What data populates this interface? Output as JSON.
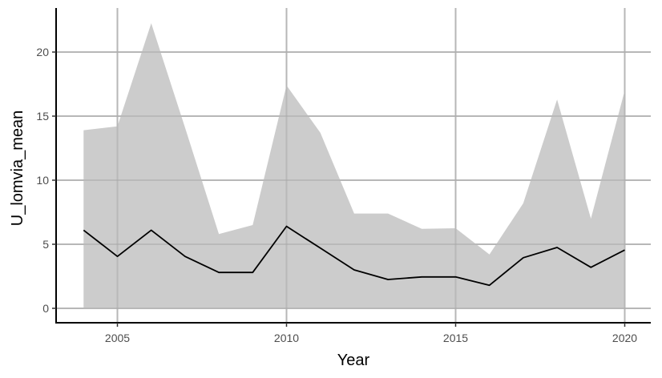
{
  "chart_data": {
    "type": "area",
    "title": "",
    "xlabel": "Year",
    "ylabel": "U_lomvia_mean",
    "x": [
      2004,
      2005,
      2006,
      2007,
      2008,
      2009,
      2010,
      2011,
      2012,
      2013,
      2014,
      2015,
      2016,
      2017,
      2018,
      2019,
      2020
    ],
    "series": [
      {
        "name": "mean",
        "kind": "line",
        "color": "#000000",
        "values": [
          6.1,
          4.05,
          6.1,
          4.05,
          2.8,
          2.8,
          6.4,
          4.7,
          3.0,
          2.25,
          2.45,
          2.45,
          1.8,
          3.95,
          4.75,
          3.2,
          4.55
        ]
      },
      {
        "name": "ribbon_upper",
        "kind": "ribbon-upper",
        "color": "#cccccc",
        "values": [
          13.9,
          14.2,
          22.25,
          14.1,
          5.8,
          6.5,
          17.4,
          13.7,
          7.4,
          7.4,
          6.2,
          6.25,
          4.2,
          8.2,
          16.3,
          7.0,
          17.0
        ]
      },
      {
        "name": "ribbon_lower",
        "kind": "ribbon-lower",
        "color": "#cccccc",
        "values": [
          0,
          0,
          0,
          0,
          0,
          0,
          0,
          0,
          0,
          0,
          0,
          0,
          0,
          0,
          0,
          0,
          0
        ]
      }
    ],
    "xticks": [
      2005,
      2010,
      2015,
      2020
    ],
    "xtick_labels": [
      "2005",
      "2010",
      "2015",
      "2020"
    ],
    "yticks": [
      0,
      5,
      10,
      15,
      20
    ],
    "ytick_labels": [
      "0",
      "5",
      "10",
      "15",
      "20"
    ],
    "xlim": [
      2003.4,
      2020.8
    ],
    "ylim": [
      -1.1,
      23.4
    ],
    "grid": true,
    "legend": "none"
  }
}
